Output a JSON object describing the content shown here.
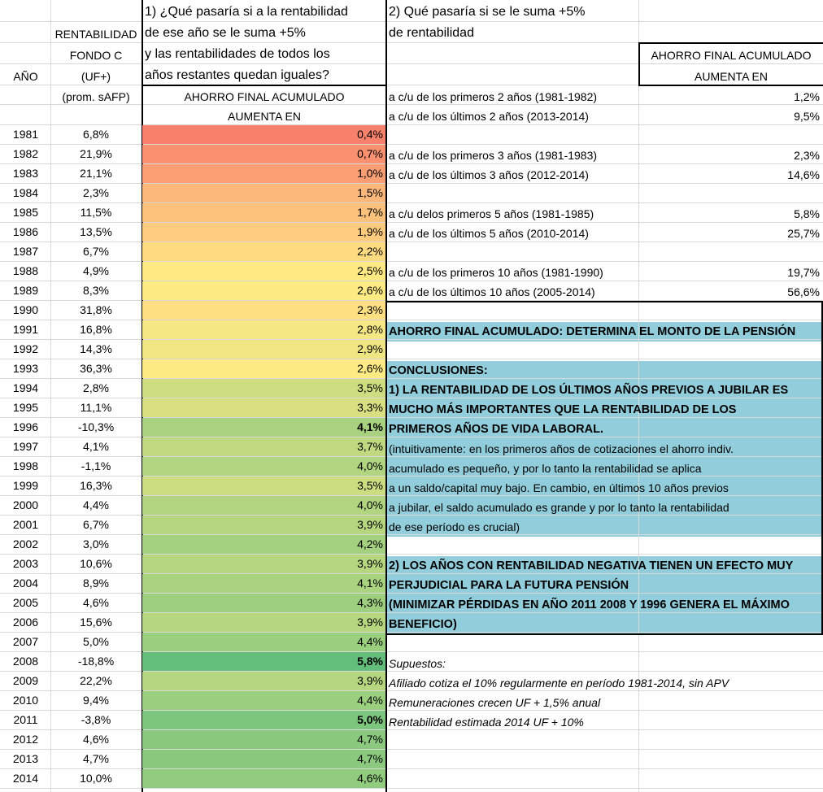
{
  "headers": {
    "year_label": "AÑO",
    "fund_line1": "RENTABILIDAD",
    "fund_line2": "FONDO C",
    "fund_line3": "(UF+)",
    "fund_line4": "(prom. sAFP)",
    "q1_line1": "1) ¿Qué pasaría si a la rentabilidad",
    "q1_line2": "de ese año se le suma +5%",
    "q1_line3": "y las rentabilidades de todos los",
    "q1_line4": "años restantes quedan iguales?",
    "q1_line5": "AHORRO FINAL ACUMULADO",
    "q1_line6": "AUMENTA EN",
    "q2_line1": "2) Qué pasaría si se le suma +5%",
    "q2_line2": "de rentabilidad",
    "q2_res_line1": "AHORRO FINAL ACUMULADO",
    "q2_res_line2": "AUMENTA EN"
  },
  "years": [
    {
      "year": "1981",
      "ret": "6,8%",
      "inc": "0,4%",
      "color": "#f8816c",
      "bold": false
    },
    {
      "year": "1982",
      "ret": "21,9%",
      "inc": "0,7%",
      "color": "#f9906f",
      "bold": false
    },
    {
      "year": "1983",
      "ret": "21,1%",
      "inc": "1,0%",
      "color": "#fa9f73",
      "bold": false
    },
    {
      "year": "1984",
      "ret": "2,3%",
      "inc": "1,5%",
      "color": "#fcb87a",
      "bold": false
    },
    {
      "year": "1985",
      "ret": "11,5%",
      "inc": "1,7%",
      "color": "#fcc27c",
      "bold": false
    },
    {
      "year": "1986",
      "ret": "13,5%",
      "inc": "1,9%",
      "color": "#fdcc7e",
      "bold": false
    },
    {
      "year": "1987",
      "ret": "6,7%",
      "inc": "2,2%",
      "color": "#fedb81",
      "bold": false
    },
    {
      "year": "1988",
      "ret": "4,9%",
      "inc": "2,5%",
      "color": "#fee983",
      "bold": false
    },
    {
      "year": "1989",
      "ret": "8,3%",
      "inc": "2,6%",
      "color": "#feeb84",
      "bold": false
    },
    {
      "year": "1990",
      "ret": "31,8%",
      "inc": "2,3%",
      "color": "#fee082",
      "bold": false
    },
    {
      "year": "1991",
      "ret": "16,8%",
      "inc": "2,8%",
      "color": "#f4e784",
      "bold": false
    },
    {
      "year": "1992",
      "ret": "14,3%",
      "inc": "2,9%",
      "color": "#efe683",
      "bold": false
    },
    {
      "year": "1993",
      "ret": "36,3%",
      "inc": "2,6%",
      "color": "#feeb84",
      "bold": false
    },
    {
      "year": "1994",
      "ret": "2,8%",
      "inc": "3,5%",
      "color": "#cfdd81",
      "bold": false
    },
    {
      "year": "1995",
      "ret": "11,1%",
      "inc": "3,3%",
      "color": "#d9e082",
      "bold": false
    },
    {
      "year": "1996",
      "ret": "-10,3%",
      "inc": "4,1%",
      "color": "#a8d27f",
      "bold": true
    },
    {
      "year": "1997",
      "ret": "4,1%",
      "inc": "3,7%",
      "color": "#c0d981",
      "bold": false
    },
    {
      "year": "1998",
      "ret": "-1,1%",
      "inc": "4,0%",
      "color": "#b0d480",
      "bold": false
    },
    {
      "year": "1999",
      "ret": "16,3%",
      "inc": "3,5%",
      "color": "#cbdc81",
      "bold": false
    },
    {
      "year": "2000",
      "ret": "4,4%",
      "inc": "4,0%",
      "color": "#b0d480",
      "bold": false
    },
    {
      "year": "2001",
      "ret": "6,7%",
      "inc": "3,9%",
      "color": "#b6d680",
      "bold": false
    },
    {
      "year": "2002",
      "ret": "3,0%",
      "inc": "4,2%",
      "color": "#a4d17f",
      "bold": false
    },
    {
      "year": "2003",
      "ret": "10,6%",
      "inc": "3,9%",
      "color": "#b6d680",
      "bold": false
    },
    {
      "year": "2004",
      "ret": "8,9%",
      "inc": "4,1%",
      "color": "#aad37f",
      "bold": false
    },
    {
      "year": "2005",
      "ret": "4,6%",
      "inc": "4,3%",
      "color": "#9ecf7f",
      "bold": false
    },
    {
      "year": "2006",
      "ret": "15,6%",
      "inc": "3,9%",
      "color": "#b6d680",
      "bold": false
    },
    {
      "year": "2007",
      "ret": "5,0%",
      "inc": "4,4%",
      "color": "#9acf7e",
      "bold": false
    },
    {
      "year": "2008",
      "ret": "-18,8%",
      "inc": "5,8%",
      "color": "#63be7b",
      "bold": true
    },
    {
      "year": "2009",
      "ret": "22,2%",
      "inc": "3,9%",
      "color": "#b6d680",
      "bold": false
    },
    {
      "year": "2010",
      "ret": "9,4%",
      "inc": "4,4%",
      "color": "#9acf7e",
      "bold": false
    },
    {
      "year": "2011",
      "ret": "-3,8%",
      "inc": "5,0%",
      "color": "#7dc67d",
      "bold": true
    },
    {
      "year": "2012",
      "ret": "4,6%",
      "inc": "4,7%",
      "color": "#8bca7e",
      "bold": false
    },
    {
      "year": "2013",
      "ret": "4,7%",
      "inc": "4,7%",
      "color": "#8bca7e",
      "bold": false
    },
    {
      "year": "2014",
      "ret": "10,0%",
      "inc": "4,6%",
      "color": "#90cb7e",
      "bold": false
    }
  ],
  "scenarios": [
    {
      "label": "a c/u de los primeros 2 años (1981-1982)",
      "value": "1,2%"
    },
    {
      "label": "a c/u de los últimos 2 años (2013-2014)",
      "value": "9,5%"
    },
    {
      "label": "a c/u de los primeros 3 años (1981-1983)",
      "value": "2,3%"
    },
    {
      "label": "a c/u de los últimos 3 años (2012-2014)",
      "value": "14,6%"
    },
    {
      "label": "a c/u delos primeros 5 años (1981-1985)",
      "value": "5,8%"
    },
    {
      "label": "a c/u de los últimos 5 años (2010-2014)",
      "value": "25,7%"
    },
    {
      "label": "a c/u de los primeros 10 años (1981-1990)",
      "value": "19,7%"
    },
    {
      "label": "a c/u de los últimos 10 años (2005-2014)",
      "value": "56,6%"
    }
  ],
  "notes": {
    "determines": "AHORRO FINAL ACUMULADO: DETERMINA EL MONTO DE LA PENSIÓN",
    "conclusions_title": "CONCLUSIONES:",
    "c1_line1": "1) LA RENTABILIDAD DE LOS ÚLTIMOS AÑOS PREVIOS A JUBILAR ES",
    "c1_line2": "MUCHO MÁS IMPORTANTES QUE LA RENTABILIDAD DE LOS",
    "c1_line3": "PRIMEROS AÑOS DE VIDA LABORAL.",
    "c1_line4": "(intuitivamente: en los primeros años de cotizaciones el ahorro indiv.",
    "c1_line5": "acumulado es pequeño, y por lo tanto la rentabilidad se aplica",
    "c1_line6": "a un saldo/capital muy bajo. En cambio, en últimos 10 años previos",
    "c1_line7": "a jubilar, el saldo acumulado es grande y por lo tanto la rentabilidad",
    "c1_line8": "de ese período es crucial)",
    "c2_line1": "2) LOS AÑOS CON RENTABILIDAD NEGATIVA TIENEN UN EFECTO MUY",
    "c2_line2": "PERJUDICIAL PARA LA FUTURA PENSIÓN",
    "c2_line3": "(MINIMIZAR PÉRDIDAS EN AÑO 2011 2008 Y 1996 GENERA EL MÁXIMO",
    "c2_line4": " BENEFICIO)"
  },
  "assumptions": {
    "title": "Supuestos:",
    "a1": "Afiliado cotiza el 10% regularmente en período 1981-2014, sin APV",
    "a2": "Remuneraciones crecen UF + 1,5% anual",
    "a3": "Rentabilidad estimada 2014 UF + 10%"
  }
}
